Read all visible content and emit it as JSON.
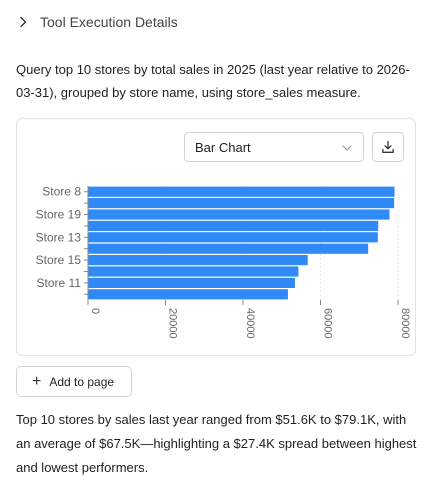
{
  "header": {
    "title": "Tool Execution Details",
    "toggle_icon": "chevron-right-icon"
  },
  "query": {
    "text": "Query top 10 stores by total sales in 2025 (last year relative to 2026-03-31), grouped by store name, using store_sales measure."
  },
  "chart_controls": {
    "chart_type_selected": "Bar Chart",
    "dropdown_icon": "chevron-down-icon",
    "download_icon": "download-icon"
  },
  "chart_data": {
    "type": "bar",
    "orientation": "horizontal",
    "categories": [
      "Store 8",
      "",
      "Store 19",
      "",
      "Store 13",
      "",
      "Store 15",
      "",
      "Store 11",
      ""
    ],
    "values": [
      79100,
      79000,
      77800,
      74900,
      74800,
      72300,
      56700,
      54300,
      53400,
      51600
    ],
    "xlim": [
      0,
      80000
    ],
    "xticks": [
      "0",
      "20000",
      "40000",
      "60000",
      "80000"
    ],
    "grid": true,
    "bar_color": "#2f8af5",
    "title": "",
    "xlabel": "",
    "ylabel": ""
  },
  "add_button": {
    "label": "Add to page",
    "icon": "plus-icon"
  },
  "summary": {
    "text": "Top 10 stores by sales last year ranged from $51.6K to $79.1K, with an average of $67.5K—highlighting a $27.4K spread between highest and lowest performers."
  }
}
